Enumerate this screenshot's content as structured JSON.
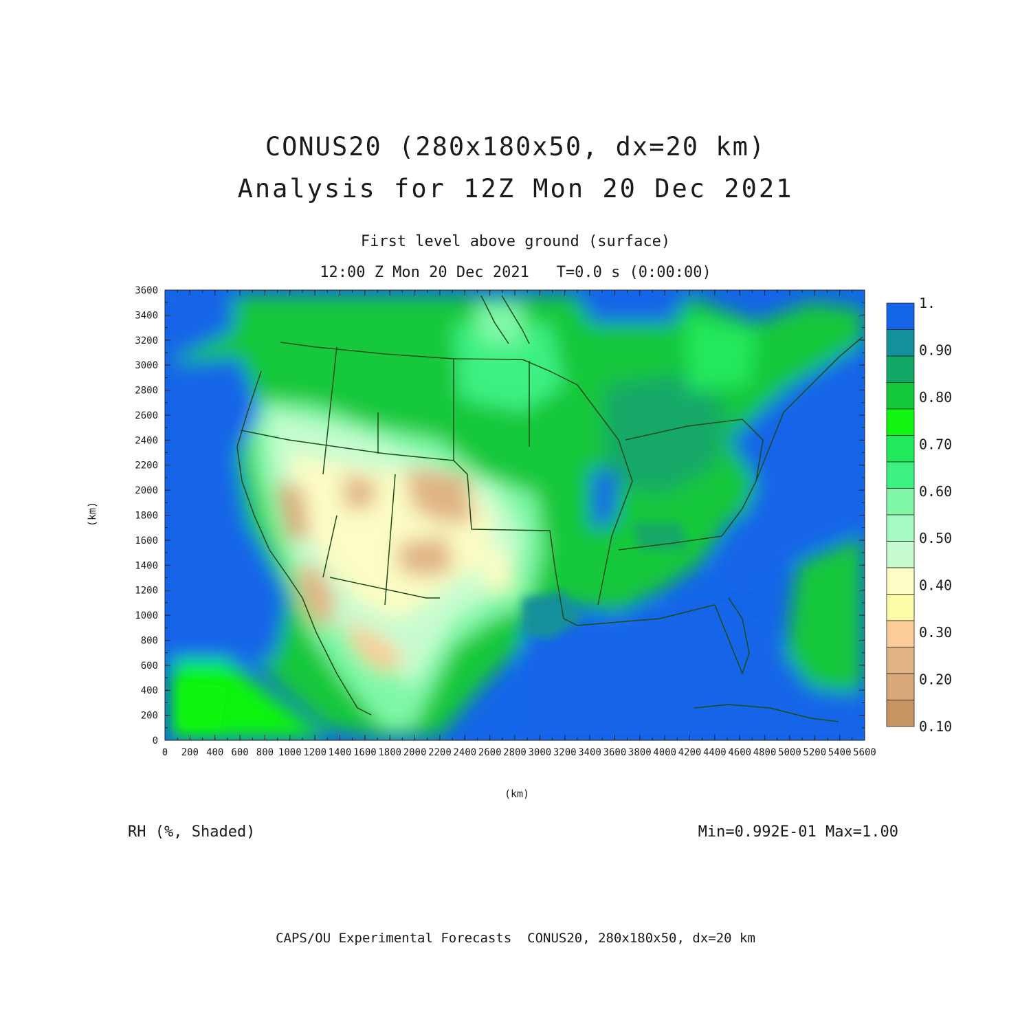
{
  "titles": {
    "line1": "CONUS20 (280x180x50, dx=20 km)",
    "line2": "Analysis for 12Z Mon 20 Dec 2021",
    "level": "First level above ground (surface)",
    "time": "12:00 Z Mon 20 Dec 2021   T=0.0 s (0:00:00)"
  },
  "axes": {
    "x_label": "(km)",
    "y_label": "(km)",
    "x_ticks": [
      "0",
      "200",
      "400",
      "600",
      "800",
      "1000",
      "1200",
      "1400",
      "1600",
      "1800",
      "2000",
      "2200",
      "2400",
      "2600",
      "2800",
      "3000",
      "3200",
      "3400",
      "3600",
      "3800",
      "4000",
      "4200",
      "4400",
      "4600",
      "4800",
      "5000",
      "5200",
      "5400",
      "5600"
    ],
    "y_ticks": [
      "0",
      "200",
      "400",
      "600",
      "800",
      "1000",
      "1200",
      "1400",
      "1600",
      "1800",
      "2000",
      "2200",
      "2400",
      "2600",
      "2800",
      "3000",
      "3200",
      "3400",
      "3600"
    ],
    "x_range": [
      0,
      5600
    ],
    "y_range": [
      0,
      3600
    ]
  },
  "colorbar": {
    "labels": [
      "1.",
      "0.90",
      "0.80",
      "0.70",
      "0.60",
      "0.50",
      "0.40",
      "0.30",
      "0.20",
      "0.10"
    ],
    "colors_top_to_bottom": [
      "#1565e8",
      "#13909a",
      "#12a868",
      "#13c83a",
      "#11f511",
      "#22e85c",
      "#3cf082",
      "#80f8a8",
      "#a4fcc4",
      "#c8fcd0",
      "#fcfcc4",
      "#fcfca8",
      "#fccc98",
      "#e0b484",
      "#d8a878",
      "#c89464"
    ]
  },
  "field": {
    "variable": "RH (%, Shaded)",
    "stats": "Min=0.992E-01 Max=1.00"
  },
  "credit": "CAPS/OU Experimental Forecasts  CONUS20, 280x180x50, dx=20 km"
}
